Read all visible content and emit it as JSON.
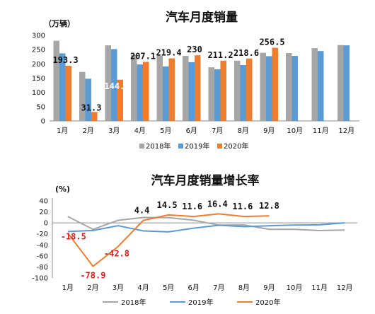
{
  "chart_data": [
    {
      "type": "bar",
      "title": "汽车月度销量",
      "unit_label": "（万辆）",
      "categories": [
        "1月",
        "2月",
        "3月",
        "4月",
        "5月",
        "6月",
        "7月",
        "8月",
        "9月",
        "10月",
        "11月",
        "12月"
      ],
      "ylim": [
        0,
        300
      ],
      "yticks": [
        0,
        50,
        100,
        150,
        200,
        250,
        300
      ],
      "legend_position": "bottom",
      "series": [
        {
          "name": "2018年",
          "color": "#a6a6a6",
          "values": [
            281,
            172,
            265,
            232,
            229,
            228,
            188,
            211,
            239,
            238,
            255,
            266
          ]
        },
        {
          "name": "2019年",
          "color": "#5b9bd5",
          "values": [
            237,
            148,
            252,
            198,
            191,
            206,
            181,
            196,
            227,
            228,
            245,
            265
          ]
        },
        {
          "name": "2020年",
          "color": "#ed7d31",
          "values": [
            193.3,
            31.3,
            144.4,
            207.1,
            219.4,
            230,
            211.2,
            218.6,
            256.5,
            null,
            null,
            null
          ]
        }
      ],
      "data_labels": [
        {
          "category_index": 0,
          "text": "193.3",
          "color": "#111111"
        },
        {
          "category_index": 1,
          "text": "31.3",
          "color": "#111111"
        },
        {
          "category_index": 2,
          "text": "144.4",
          "color": "#ffffff"
        },
        {
          "category_index": 3,
          "text": "207.1",
          "color": "#111111"
        },
        {
          "category_index": 4,
          "text": "219.4",
          "color": "#111111"
        },
        {
          "category_index": 5,
          "text": "230",
          "color": "#111111"
        },
        {
          "category_index": 6,
          "text": "211.2",
          "color": "#111111"
        },
        {
          "category_index": 7,
          "text": "218.6",
          "color": "#111111"
        },
        {
          "category_index": 8,
          "text": "256.5",
          "color": "#111111"
        }
      ]
    },
    {
      "type": "line",
      "title": "汽车月度销量增长率",
      "unit_label": "(%)",
      "categories": [
        "1月",
        "2月",
        "3月",
        "4月",
        "5月",
        "6月",
        "7月",
        "8月",
        "9月",
        "10月",
        "11月",
        "12月"
      ],
      "ylim": [
        -100,
        40
      ],
      "yticks": [
        40,
        20,
        0,
        -20,
        -40,
        -60,
        -80,
        -100
      ],
      "legend_position": "bottom",
      "series": [
        {
          "name": "2018年",
          "color": "#a6a6a6",
          "values": [
            11.6,
            -11.7,
            4.7,
            9.8,
            9.6,
            4.8,
            -4,
            -3.8,
            -11.6,
            -11.7,
            -13.9,
            -13
          ]
        },
        {
          "name": "2019年",
          "color": "#5b9bd5",
          "values": [
            -15.8,
            -13.8,
            -5.2,
            -14.6,
            -16.4,
            -9.6,
            -4.3,
            -6.9,
            -5.2,
            -4,
            -3.6,
            0.1
          ]
        },
        {
          "name": "2020年",
          "color": "#ed7d31",
          "values": [
            -18.5,
            -78.9,
            -42.8,
            4.4,
            14.5,
            11.6,
            16.4,
            11.6,
            12.8,
            null,
            null,
            null
          ]
        }
      ],
      "data_labels": [
        {
          "category_index": 0,
          "text": "-18.5",
          "color": "#e02020"
        },
        {
          "category_index": 1,
          "text": "-78.9",
          "color": "#e02020"
        },
        {
          "category_index": 2,
          "text": "-42.8",
          "color": "#e02020"
        },
        {
          "category_index": 3,
          "text": "4.4",
          "color": "#111111"
        },
        {
          "category_index": 4,
          "text": "14.5",
          "color": "#111111"
        },
        {
          "category_index": 5,
          "text": "11.6",
          "color": "#111111"
        },
        {
          "category_index": 6,
          "text": "16.4",
          "color": "#111111"
        },
        {
          "category_index": 7,
          "text": "11.6",
          "color": "#111111"
        },
        {
          "category_index": 8,
          "text": "12.8",
          "color": "#111111"
        }
      ]
    }
  ]
}
